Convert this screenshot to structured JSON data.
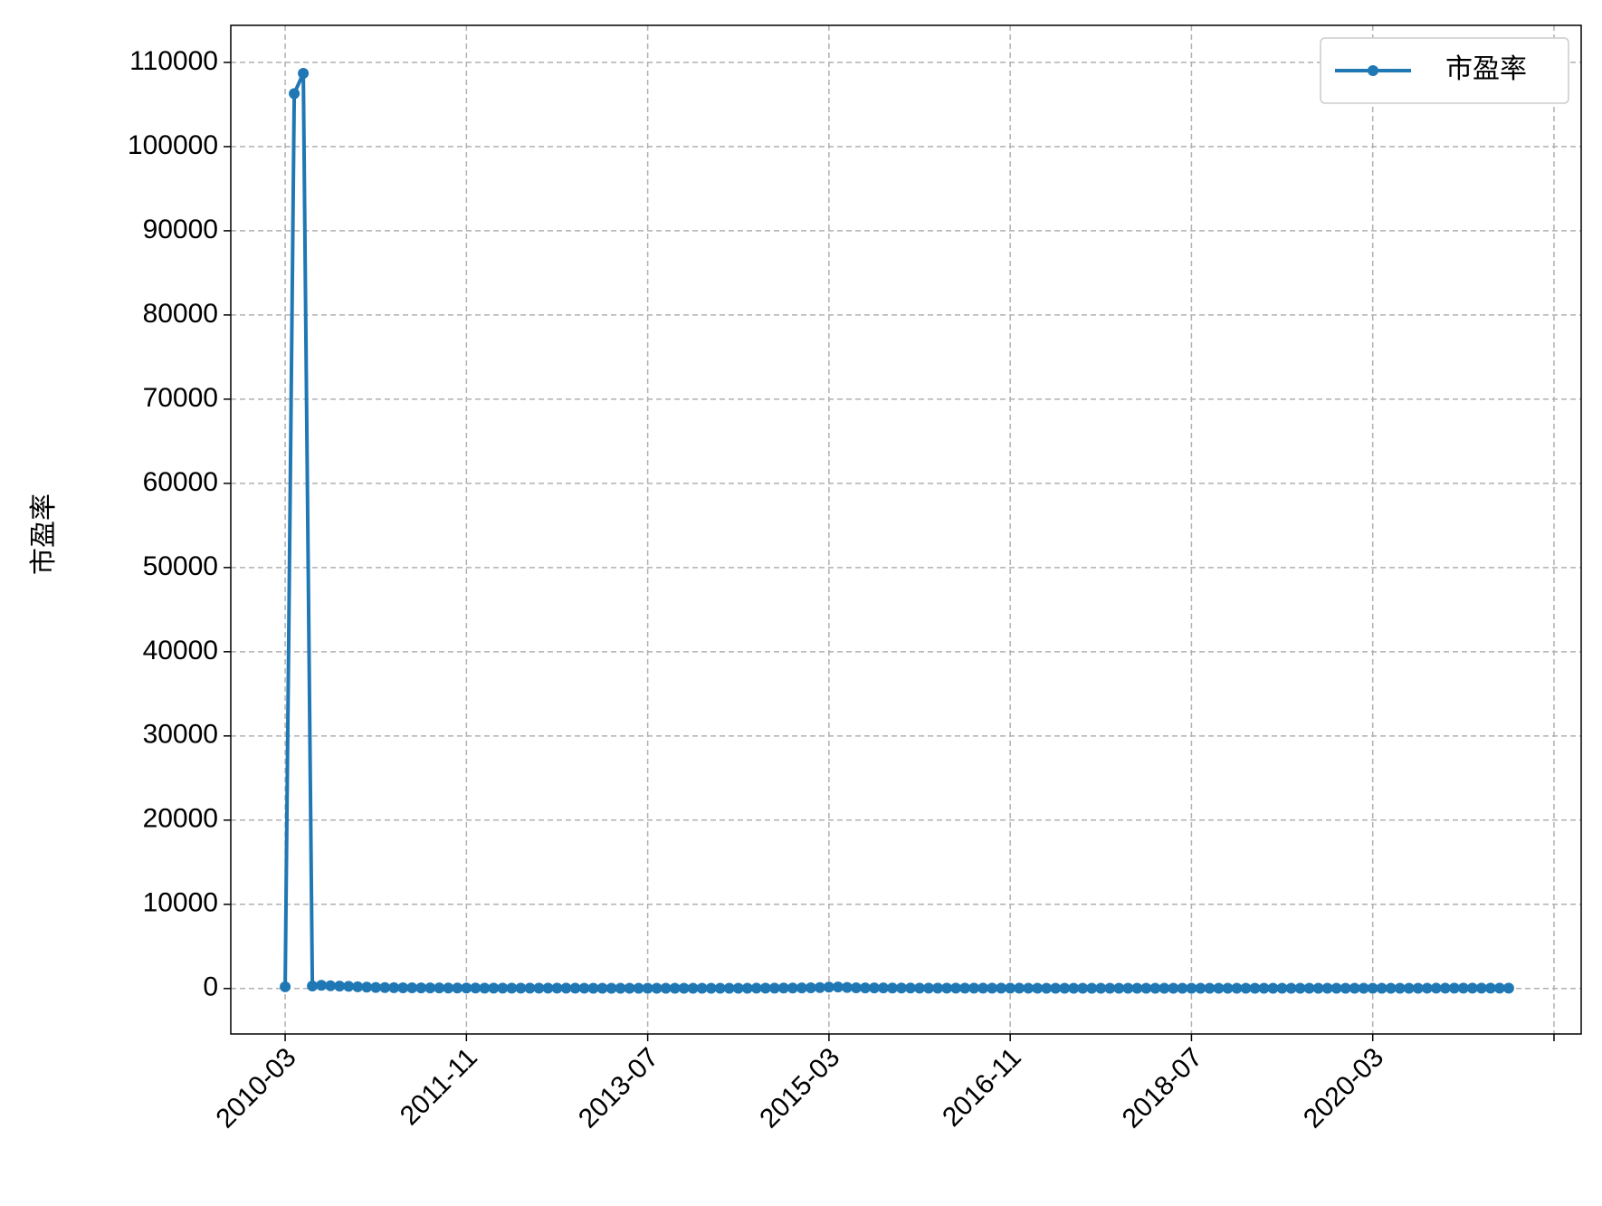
{
  "chart_data": {
    "type": "line",
    "ylabel": "市盈率",
    "x": [
      "2010-03",
      "2010-04",
      "2010-05",
      "2010-06",
      "2010-07",
      "2010-08",
      "2010-09",
      "2010-10",
      "2010-11",
      "2010-12",
      "2011-01",
      "2011-02",
      "2011-03",
      "2011-04",
      "2011-05",
      "2011-06",
      "2011-07",
      "2011-08",
      "2011-09",
      "2011-10",
      "2011-11",
      "2011-12",
      "2012-01",
      "2012-02",
      "2012-03",
      "2012-04",
      "2012-05",
      "2012-06",
      "2012-07",
      "2012-08",
      "2012-09",
      "2012-10",
      "2012-11",
      "2012-12",
      "2013-01",
      "2013-02",
      "2013-03",
      "2013-04",
      "2013-05",
      "2013-06",
      "2013-07",
      "2013-08",
      "2013-09",
      "2013-10",
      "2013-11",
      "2013-12",
      "2014-01",
      "2014-02",
      "2014-03",
      "2014-04",
      "2014-05",
      "2014-06",
      "2014-07",
      "2014-08",
      "2014-09",
      "2014-10",
      "2014-11",
      "2014-12",
      "2015-01",
      "2015-02",
      "2015-03",
      "2015-04",
      "2015-05",
      "2015-06",
      "2015-07",
      "2015-08",
      "2015-09",
      "2015-10",
      "2015-11",
      "2015-12",
      "2016-01",
      "2016-02",
      "2016-03",
      "2016-04",
      "2016-05",
      "2016-06",
      "2016-07",
      "2016-08",
      "2016-09",
      "2016-10",
      "2016-11",
      "2016-12",
      "2017-01",
      "2017-02",
      "2017-03",
      "2017-04",
      "2017-05",
      "2017-06",
      "2017-07",
      "2017-08",
      "2017-09",
      "2017-10",
      "2017-11",
      "2017-12",
      "2018-01",
      "2018-02",
      "2018-03",
      "2018-04",
      "2018-05",
      "2018-06",
      "2018-07",
      "2018-08",
      "2018-09",
      "2018-10",
      "2018-11",
      "2018-12",
      "2019-01",
      "2019-02",
      "2019-03",
      "2019-04",
      "2019-05",
      "2019-06",
      "2019-07",
      "2019-08",
      "2019-09",
      "2019-10",
      "2019-11",
      "2019-12",
      "2020-01",
      "2020-02",
      "2020-03",
      "2020-04",
      "2020-05",
      "2020-06",
      "2020-07",
      "2020-08",
      "2020-09",
      "2020-10",
      "2020-11",
      "2020-12",
      "2021-01",
      "2021-02",
      "2021-03",
      "2021-04",
      "2021-05",
      "2021-06"
    ],
    "series": [
      {
        "name": "市盈率",
        "color": "#1f77b4",
        "values": [
          200,
          106300,
          108700,
          300,
          380,
          320,
          290,
          260,
          210,
          160,
          130,
          110,
          95,
          85,
          80,
          75,
          70,
          65,
          60,
          58,
          55,
          52,
          50,
          48,
          47,
          45,
          44,
          43,
          42,
          40,
          40,
          39,
          38,
          37,
          36,
          36,
          35,
          35,
          34,
          34,
          33,
          33,
          32,
          32,
          31,
          31,
          30,
          30,
          31,
          32,
          33,
          35,
          38,
          42,
          48,
          55,
          62,
          70,
          85,
          110,
          160,
          180,
          120,
          90,
          75,
          70,
          65,
          60,
          58,
          55,
          50,
          48,
          46,
          45,
          44,
          43,
          42,
          41,
          40,
          39,
          38,
          38,
          37,
          36,
          36,
          35,
          35,
          34,
          34,
          33,
          33,
          32,
          32,
          31,
          31,
          30,
          30,
          29,
          29,
          28,
          28,
          27,
          27,
          26,
          26,
          25,
          25,
          25,
          26,
          26,
          27,
          27,
          28,
          28,
          29,
          29,
          30,
          30,
          31,
          31,
          32,
          32,
          33,
          34,
          35,
          36,
          37,
          38,
          38,
          39,
          40,
          40,
          41,
          41,
          40,
          39
        ]
      }
    ],
    "xlim": [
      "2009-09",
      "2022-02"
    ],
    "xticks": [
      "2010-03",
      "2011-11",
      "2013-07",
      "2015-03",
      "2016-11",
      "2018-07",
      "2020-03",
      {
        "value": "2021-11",
        "label": null
      }
    ],
    "ylim": [
      -5400,
      114400
    ],
    "yticks": [
      0,
      10000,
      20000,
      30000,
      40000,
      50000,
      60000,
      70000,
      80000,
      90000,
      100000,
      110000
    ],
    "grid": true,
    "legend": "upper right"
  }
}
